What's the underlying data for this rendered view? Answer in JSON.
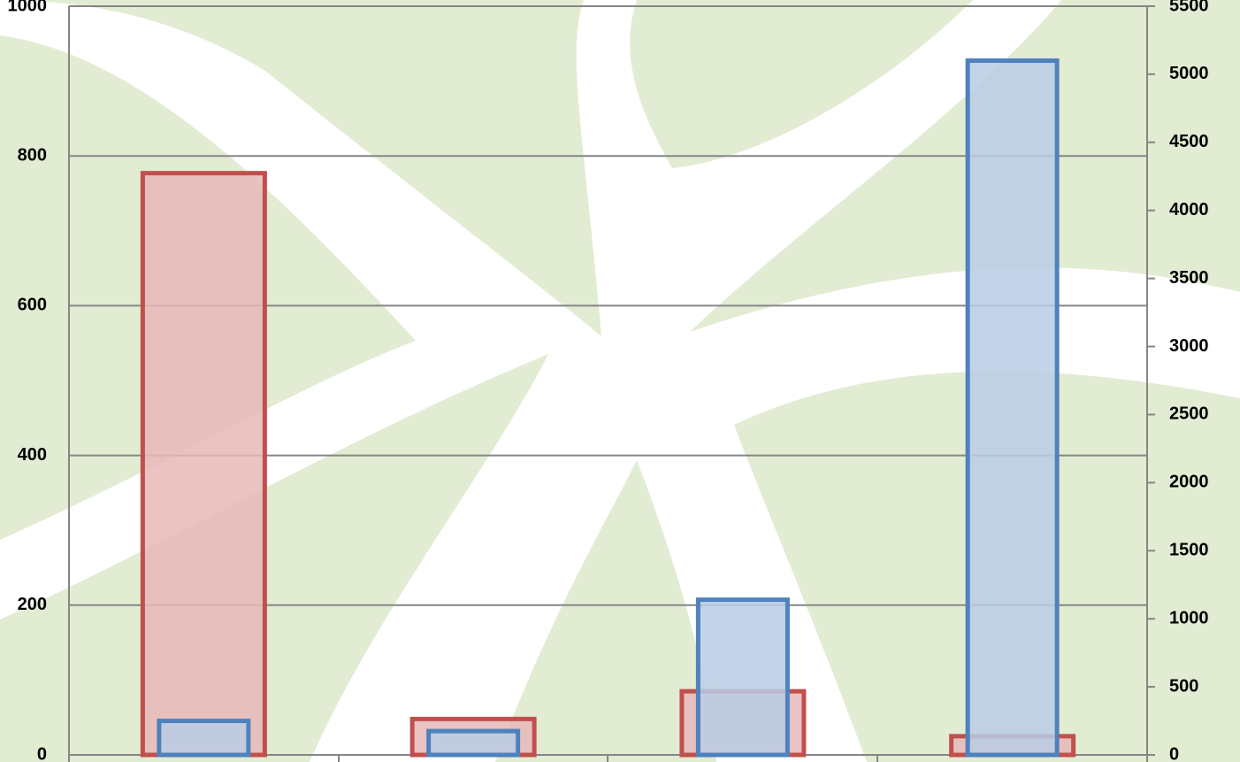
{
  "chart_data": {
    "type": "bar",
    "categories": [
      null,
      null,
      null,
      null
    ],
    "series": [
      {
        "color": "#c0504d",
        "values": [
          777,
          48,
          85,
          25
        ]
      },
      {
        "color": "#4f81bd",
        "values": [
          250,
          175,
          1140,
          5100
        ],
        "axis": "y2"
      }
    ],
    "ylim": [
      0,
      1000
    ],
    "yticks": [
      0,
      200,
      400,
      600,
      800,
      1000
    ],
    "y2lim": [
      0,
      5500
    ],
    "y2ticks": [
      0,
      500,
      1000,
      1500,
      2000,
      2500,
      3000,
      3500,
      4000,
      4500,
      5000,
      5500
    ],
    "grid": true
  }
}
